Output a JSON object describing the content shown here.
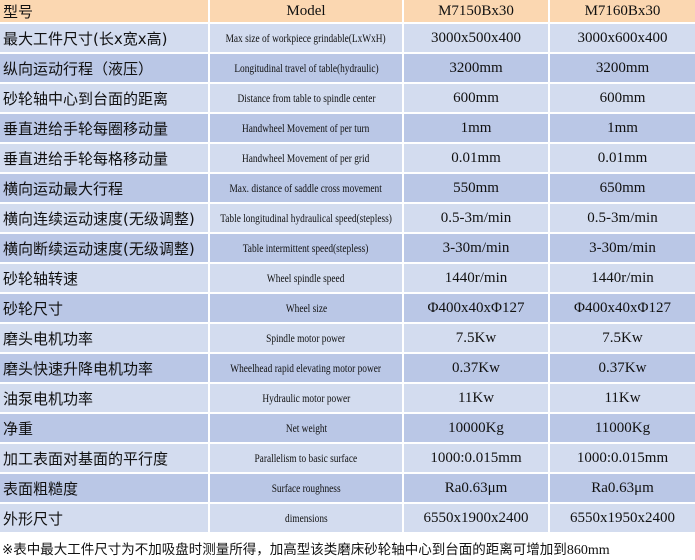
{
  "header": {
    "c1": "型号",
    "c2": "Model",
    "c3": "M7150Bx30",
    "c4": "M7160Bx30"
  },
  "colors": {
    "header_bg": "#fbd7b1",
    "row_light": "#d3dcef",
    "row_dark": "#bac7e6"
  },
  "rows": [
    {
      "cn": "最大工件尺寸(长x宽x高)",
      "en": "Max size of workpiece grindable(LxWxH)",
      "a": "3000x500x400",
      "b": "3000x600x400"
    },
    {
      "cn": "纵向运动行程（液压）",
      "en": "Longitudinal travel of table(hydraulic)",
      "a": "3200mm",
      "b": "3200mm"
    },
    {
      "cn": "砂轮轴中心到台面的距离",
      "en": "Distance from table to spindle center",
      "a": "600mm",
      "b": "600mm"
    },
    {
      "cn": "垂直进给手轮每圈移动量",
      "en": "Handwheel Movement of per turn",
      "a": "1mm",
      "b": "1mm"
    },
    {
      "cn": "垂直进给手轮每格移动量",
      "en": "Handwheel Movement of per grid",
      "a": "0.01mm",
      "b": "0.01mm"
    },
    {
      "cn": "横向运动最大行程",
      "en": "Max. distance of saddle cross movement",
      "a": "550mm",
      "b": "650mm"
    },
    {
      "cn": "横向连续运动速度(无级调整)",
      "en": "Table longitudinal hydraulical speed(stepless)",
      "a": "0.5-3m/min",
      "b": "0.5-3m/min"
    },
    {
      "cn": "横向断续运动速度(无级调整)",
      "en": "Table intermittent speed(stepless)",
      "a": "3-30m/min",
      "b": "3-30m/min"
    },
    {
      "cn": "砂轮轴转速",
      "en": "Wheel spindle speed",
      "a": "1440r/min",
      "b": "1440r/min"
    },
    {
      "cn": "砂轮尺寸",
      "en": "Wheel size",
      "a": "Φ400x40xΦ127",
      "b": "Φ400x40xΦ127"
    },
    {
      "cn": "磨头电机功率",
      "en": "Spindle motor power",
      "a": "7.5Kw",
      "b": "7.5Kw"
    },
    {
      "cn": "磨头快速升降电机功率",
      "en": "Wheelhead rapid elevating motor power",
      "a": "0.37Kw",
      "b": "0.37Kw"
    },
    {
      "cn": "油泵电机功率",
      "en": "Hydraulic motor power",
      "a": "11Kw",
      "b": "11Kw"
    },
    {
      "cn": "净重",
      "en": "Net weight",
      "a": "10000Kg",
      "b": "11000Kg"
    },
    {
      "cn": "加工表面对基面的平行度",
      "en": "Parallelism to basic surface",
      "a": "1000:0.015mm",
      "b": "1000:0.015mm"
    },
    {
      "cn": "表面粗糙度",
      "en": "Surface roughness",
      "a": "Ra0.63μm",
      "b": "Ra0.63μm"
    },
    {
      "cn": "外形尺寸",
      "en": "dimensions",
      "a": "6550x1900x2400",
      "b": "6550x1950x2400"
    }
  ],
  "footnote": {
    "text": "※表中最大工件尺寸为不加吸盘时测量所得，加高型该类磨床砂轮轴中心到台面的距离可增加到",
    "value": "860mm"
  }
}
